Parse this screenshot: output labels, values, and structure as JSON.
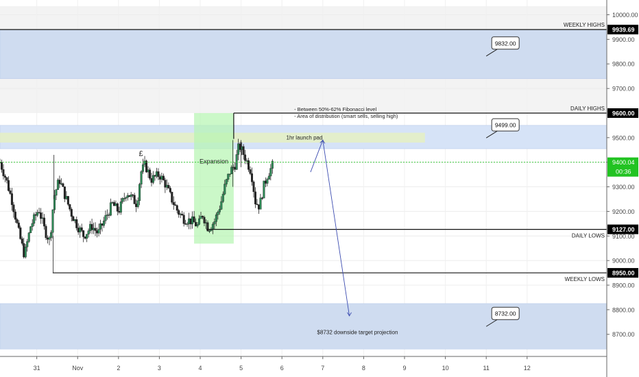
{
  "chart_data": {
    "type": "candlestick",
    "ylim": [
      8610,
      10060
    ],
    "xlim_days": [
      -1.9,
      12.95
    ],
    "y_ticks": [
      10000,
      9900,
      9800,
      9700,
      9500,
      9400,
      9300,
      9200,
      9100,
      9000,
      8900,
      8800,
      8700
    ],
    "x_ticks": [
      {
        "day": -1,
        "label": "31"
      },
      {
        "day": 0,
        "label": "Nov"
      },
      {
        "day": 1,
        "label": "2"
      },
      {
        "day": 2,
        "label": "3"
      },
      {
        "day": 3,
        "label": "4"
      },
      {
        "day": 4,
        "label": "5"
      },
      {
        "day": 5,
        "label": "6"
      },
      {
        "day": 6,
        "label": "7"
      },
      {
        "day": 7,
        "label": "8"
      },
      {
        "day": 8,
        "label": "9"
      },
      {
        "day": 9,
        "label": "10"
      },
      {
        "day": 10,
        "label": "11"
      },
      {
        "day": 11,
        "label": "12"
      }
    ],
    "levels": [
      {
        "name": "weekly-highs",
        "label": "WEEKLY HIGHS",
        "value": 9939.69,
        "value_label": "9939.69",
        "from_day": -1.9
      },
      {
        "name": "daily-highs",
        "label": "DAILY HIGHS",
        "value": 9600.0,
        "value_label": "9600.00",
        "from_day": 3.82
      },
      {
        "name": "daily-lows",
        "label": "DAILY LOWS",
        "value": 9127.0,
        "value_label": "9127.00",
        "from_day": 3.15
      },
      {
        "name": "weekly-lows",
        "label": "WEEKLY LOWS",
        "value": 8950.0,
        "value_label": "8950.00",
        "from_day": -0.61
      }
    ],
    "current_price": {
      "value": 9400.04,
      "label": "9400.04",
      "countdown": "00:36"
    },
    "zones": [
      {
        "name": "upper-supply-zone",
        "from": 9740,
        "to": 9940,
        "color": "#cfdcf0"
      },
      {
        "name": "distribution-zone",
        "from": 9455,
        "to": 9550,
        "color": "#d6e3f7"
      },
      {
        "name": "downside-target-zone",
        "from": 8640,
        "to": 8825,
        "color": "#cfdcf0"
      }
    ],
    "grey_bands": [
      {
        "from": 9940,
        "to": 10035
      },
      {
        "from": 9600,
        "to": 9740
      }
    ],
    "launch_pad": {
      "label": "1hr launch pad",
      "from": 9480,
      "to": 9520,
      "day_from": -1.9,
      "day_to": 8.5
    },
    "expansion_box": {
      "label": "Expansion",
      "day_from": 2.85,
      "day_to": 3.82,
      "from": 9069,
      "to": 9600
    },
    "notes": [
      "- Between 50%-62% Fibonacci level",
      "- Area of distribution (smart sells, selling high)"
    ],
    "target_label": "$8732 downside target projection",
    "callouts": [
      {
        "label": "9832.00",
        "value": 9832,
        "day": 10
      },
      {
        "label": "9499.00",
        "value": 9499,
        "day": 10
      },
      {
        "label": "8732.00",
        "value": 8732,
        "day": 10
      }
    ],
    "pound_marker": {
      "label": "£",
      "day": 1.55,
      "value": 9425
    },
    "projection_path": [
      {
        "day": 5.7,
        "value": 9360
      },
      {
        "day": 6.0,
        "value": 9490
      },
      {
        "day": 6.65,
        "value": 8775
      }
    ],
    "price_path": [
      [
        -1.9,
        9400
      ],
      [
        -1.75,
        9330
      ],
      [
        -1.6,
        9240
      ],
      [
        -1.45,
        9120
      ],
      [
        -1.3,
        9020
      ],
      [
        -1.15,
        9140
      ],
      [
        -0.95,
        9210
      ],
      [
        -0.8,
        9120
      ],
      [
        -0.68,
        9080
      ],
      [
        -0.58,
        9260
      ],
      [
        -0.45,
        9330
      ],
      [
        -0.3,
        9260
      ],
      [
        -0.15,
        9190
      ],
      [
        0.0,
        9140
      ],
      [
        0.15,
        9100
      ],
      [
        0.35,
        9140
      ],
      [
        0.5,
        9110
      ],
      [
        0.7,
        9180
      ],
      [
        0.85,
        9230
      ],
      [
        1.0,
        9200
      ],
      [
        1.2,
        9280
      ],
      [
        1.35,
        9250
      ],
      [
        1.45,
        9230
      ],
      [
        1.55,
        9360
      ],
      [
        1.65,
        9390
      ],
      [
        1.8,
        9330
      ],
      [
        2.0,
        9350
      ],
      [
        2.15,
        9310
      ],
      [
        2.3,
        9250
      ],
      [
        2.45,
        9200
      ],
      [
        2.6,
        9170
      ],
      [
        2.8,
        9160
      ],
      [
        2.95,
        9140
      ],
      [
        3.05,
        9190
      ],
      [
        3.2,
        9130
      ],
      [
        3.35,
        9160
      ],
      [
        3.5,
        9230
      ],
      [
        3.6,
        9300
      ],
      [
        3.72,
        9360
      ],
      [
        3.85,
        9390
      ],
      [
        3.95,
        9470
      ],
      [
        4.1,
        9420
      ],
      [
        4.25,
        9360
      ],
      [
        4.35,
        9240
      ],
      [
        4.45,
        9220
      ],
      [
        4.55,
        9300
      ],
      [
        4.65,
        9350
      ],
      [
        4.75,
        9380
      ],
      [
        4.8,
        9400
      ]
    ]
  }
}
